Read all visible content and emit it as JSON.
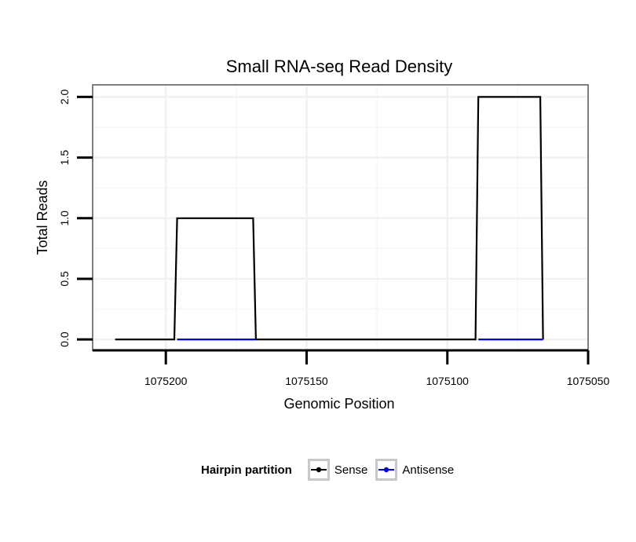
{
  "chart_data": {
    "type": "line",
    "title": "Small RNA-seq Read Density",
    "xlabel": "Genomic Position",
    "ylabel": "Total Reads",
    "xlim": [
      1075226,
      1075050
    ],
    "ylim": [
      -0.09,
      2.1
    ],
    "x_reversed": true,
    "x_ticks": [
      1075200,
      1075150,
      1075100,
      1075050
    ],
    "x_tick_labels": [
      "1075200",
      "1075150",
      "1075100",
      "1075050"
    ],
    "y_ticks": [
      0,
      0.5,
      1,
      1.5,
      2
    ],
    "y_tick_labels": [
      "0.0",
      "0.5",
      "1.0",
      "1.5",
      "2.0"
    ],
    "grid": true,
    "legend_position": "bottom",
    "legend_title": "Hairpin partition",
    "series": [
      {
        "name": "Sense",
        "color": "#000000",
        "x": [
          1075218,
          1075197,
          1075196,
          1075169,
          1075168,
          1075090,
          1075089,
          1075067,
          1075066
        ],
        "y": [
          0,
          0,
          1,
          1,
          0,
          0,
          2,
          2,
          0
        ]
      },
      {
        "name": "Antisense",
        "color": "#0000ff",
        "x": [
          1075196,
          1075168,
          1075089,
          1075066
        ],
        "y": [
          0,
          0,
          0,
          0
        ],
        "segments": [
          [
            0,
            1
          ],
          [
            2,
            3
          ]
        ]
      }
    ]
  }
}
